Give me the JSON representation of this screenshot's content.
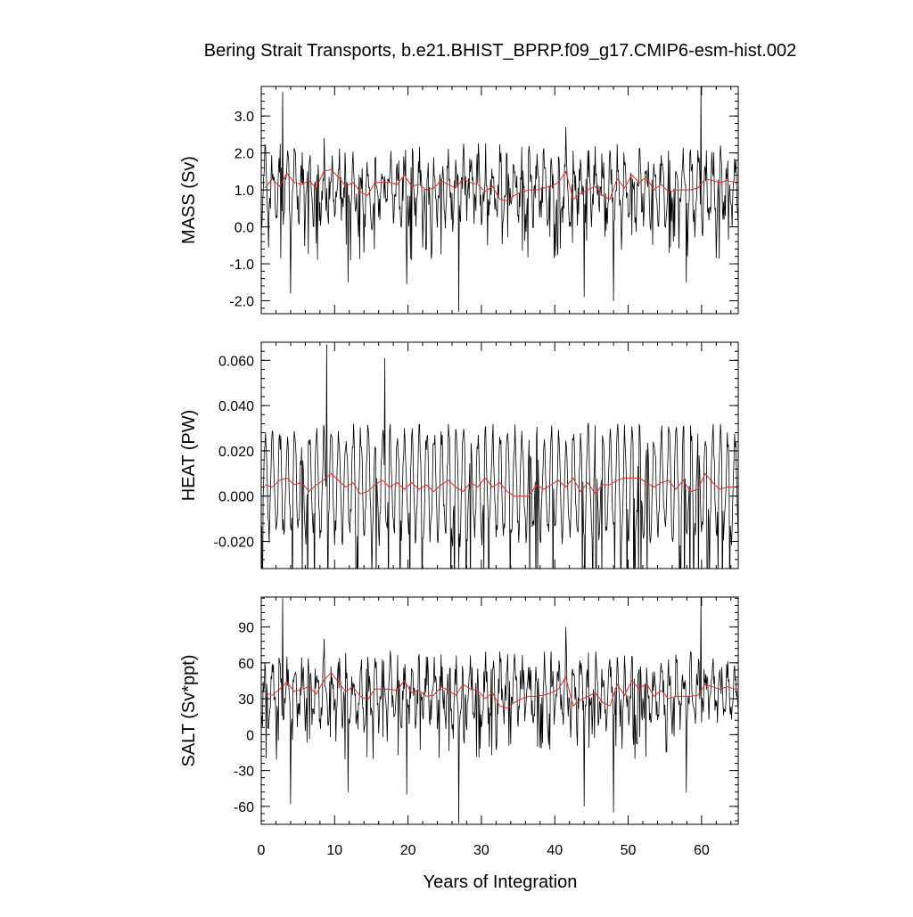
{
  "chart_data": {
    "type": "line",
    "title": "Bering Strait Transports, b.e21.BHIST_BPRP.f09_g17.CMIP6-esm-hist.002",
    "xlabel": "Years of Integration",
    "xlim": [
      0,
      65
    ],
    "x_ticks": [
      0,
      10,
      20,
      30,
      40,
      50,
      60
    ],
    "x_tick_labels": [
      "0",
      "10",
      "20",
      "30",
      "40",
      "50",
      "60"
    ],
    "grid": false,
    "colors": {
      "monthly": "#000000",
      "annual_mean": "#e8261e"
    },
    "panels": [
      {
        "id": "mass",
        "ylabel": "MASS (Sv)",
        "ylim": [
          -2.35,
          3.8
        ],
        "y_ticks": [
          3.0,
          2.0,
          1.0,
          0.0,
          -1.0,
          -2.0
        ],
        "y_tick_labels": [
          "3.0",
          "2.0",
          "1.0",
          "0.0",
          "-1.0",
          "-2.0"
        ],
        "monthly": {
          "center": 1.05,
          "amplitude": 0.7,
          "noise": 0.55,
          "spikes": [
            {
              "x": 2.9,
              "y": 3.65
            },
            {
              "x": 4.0,
              "y": -1.8
            },
            {
              "x": 11.8,
              "y": -1.5
            },
            {
              "x": 19.8,
              "y": -1.55
            },
            {
              "x": 26.9,
              "y": -2.3
            },
            {
              "x": 44.0,
              "y": -1.9
            },
            {
              "x": 48.0,
              "y": -2.0
            },
            {
              "x": 57.9,
              "y": -1.5
            },
            {
              "x": 59.9,
              "y": 3.8
            },
            {
              "x": 8.6,
              "y": 2.4
            },
            {
              "x": 41.5,
              "y": 2.7
            }
          ]
        },
        "annual_mean": [
          1.05,
          1.3,
          1.1,
          1.45,
          1.2,
          1.15,
          1.25,
          1.05,
          1.5,
          1.55,
          1.35,
          1.1,
          1.2,
          0.95,
          0.85,
          1.2,
          1.2,
          1.2,
          1.15,
          1.4,
          1.1,
          1.15,
          1.0,
          1.05,
          1.25,
          1.15,
          1.05,
          1.3,
          1.2,
          1.15,
          0.95,
          1.1,
          0.75,
          0.7,
          0.85,
          0.95,
          1.0,
          1.0,
          1.05,
          1.1,
          1.2,
          1.5,
          0.75,
          0.9,
          1.0,
          1.1,
          0.85,
          0.75,
          1.3,
          1.05,
          1.4,
          1.2,
          1.35,
          1.0,
          1.15,
          0.95,
          1.0,
          1.0,
          1.0,
          1.05,
          1.3,
          1.25,
          1.2,
          1.25,
          1.2,
          1.2
        ]
      },
      {
        "id": "heat",
        "ylabel": "HEAT (PW)",
        "ylim": [
          -0.032,
          0.068
        ],
        "y_ticks": [
          0.06,
          0.04,
          0.02,
          0.0,
          -0.02
        ],
        "y_tick_labels": [
          "0.060",
          "0.040",
          "0.020",
          "0.000",
          "-0.020"
        ],
        "monthly": {
          "center": 0.005,
          "amplitude": 0.022,
          "noise": 0.006,
          "spikes": [
            {
              "x": 8.9,
              "y": 0.067
            },
            {
              "x": 26.9,
              "y": -0.032
            },
            {
              "x": 16.8,
              "y": 0.061
            }
          ]
        },
        "annual_mean": [
          0.005,
          0.004,
          0.007,
          0.008,
          0.005,
          0.006,
          0.002,
          0.005,
          0.007,
          0.01,
          0.007,
          0.004,
          0.006,
          0.001,
          0.002,
          0.005,
          0.007,
          0.004,
          0.006,
          0.003,
          0.006,
          0.003,
          0.005,
          0.002,
          0.005,
          0.007,
          0.004,
          0.002,
          0.006,
          0.004,
          0.008,
          0.004,
          0.006,
          0.002,
          0.0,
          0.0,
          0.0,
          0.005,
          0.003,
          0.005,
          0.007,
          0.004,
          0.008,
          0.002,
          0.006,
          0.001,
          0.005,
          0.005,
          0.007,
          0.008,
          0.008,
          0.008,
          0.006,
          0.004,
          0.006,
          0.007,
          0.003,
          0.007,
          0.002,
          0.003,
          0.01,
          0.006,
          0.003,
          0.004,
          0.004,
          0.005
        ]
      },
      {
        "id": "salt",
        "ylabel": "SALT (Sv*ppt)",
        "ylim": [
          -75,
          115
        ],
        "y_ticks": [
          90,
          60,
          30,
          0,
          -30,
          -60
        ],
        "y_tick_labels": [
          "90",
          "60",
          "30",
          "0",
          "-30",
          "-60"
        ],
        "monthly": {
          "center": 35,
          "amplitude": 20,
          "noise": 16,
          "spikes": [
            {
              "x": 2.9,
              "y": 114
            },
            {
              "x": 4.0,
              "y": -58
            },
            {
              "x": 11.8,
              "y": -48
            },
            {
              "x": 19.8,
              "y": -50
            },
            {
              "x": 26.9,
              "y": -74
            },
            {
              "x": 44.0,
              "y": -60
            },
            {
              "x": 48.0,
              "y": -65
            },
            {
              "x": 57.9,
              "y": -48
            },
            {
              "x": 59.9,
              "y": 115
            },
            {
              "x": 8.6,
              "y": 80
            },
            {
              "x": 41.5,
              "y": 90
            }
          ]
        },
        "annual_mean": [
          35,
          33,
          38,
          44,
          36,
          38,
          40,
          34,
          45,
          52,
          44,
          36,
          40,
          32,
          29,
          38,
          38,
          38,
          37,
          45,
          35,
          37,
          32,
          33,
          40,
          37,
          33,
          42,
          38,
          37,
          30,
          35,
          24,
          22,
          27,
          30,
          32,
          32,
          33,
          35,
          38,
          48,
          24,
          29,
          32,
          35,
          27,
          24,
          42,
          33,
          45,
          38,
          43,
          32,
          37,
          30,
          32,
          32,
          32,
          33,
          42,
          40,
          38,
          40,
          38,
          38
        ]
      }
    ]
  }
}
